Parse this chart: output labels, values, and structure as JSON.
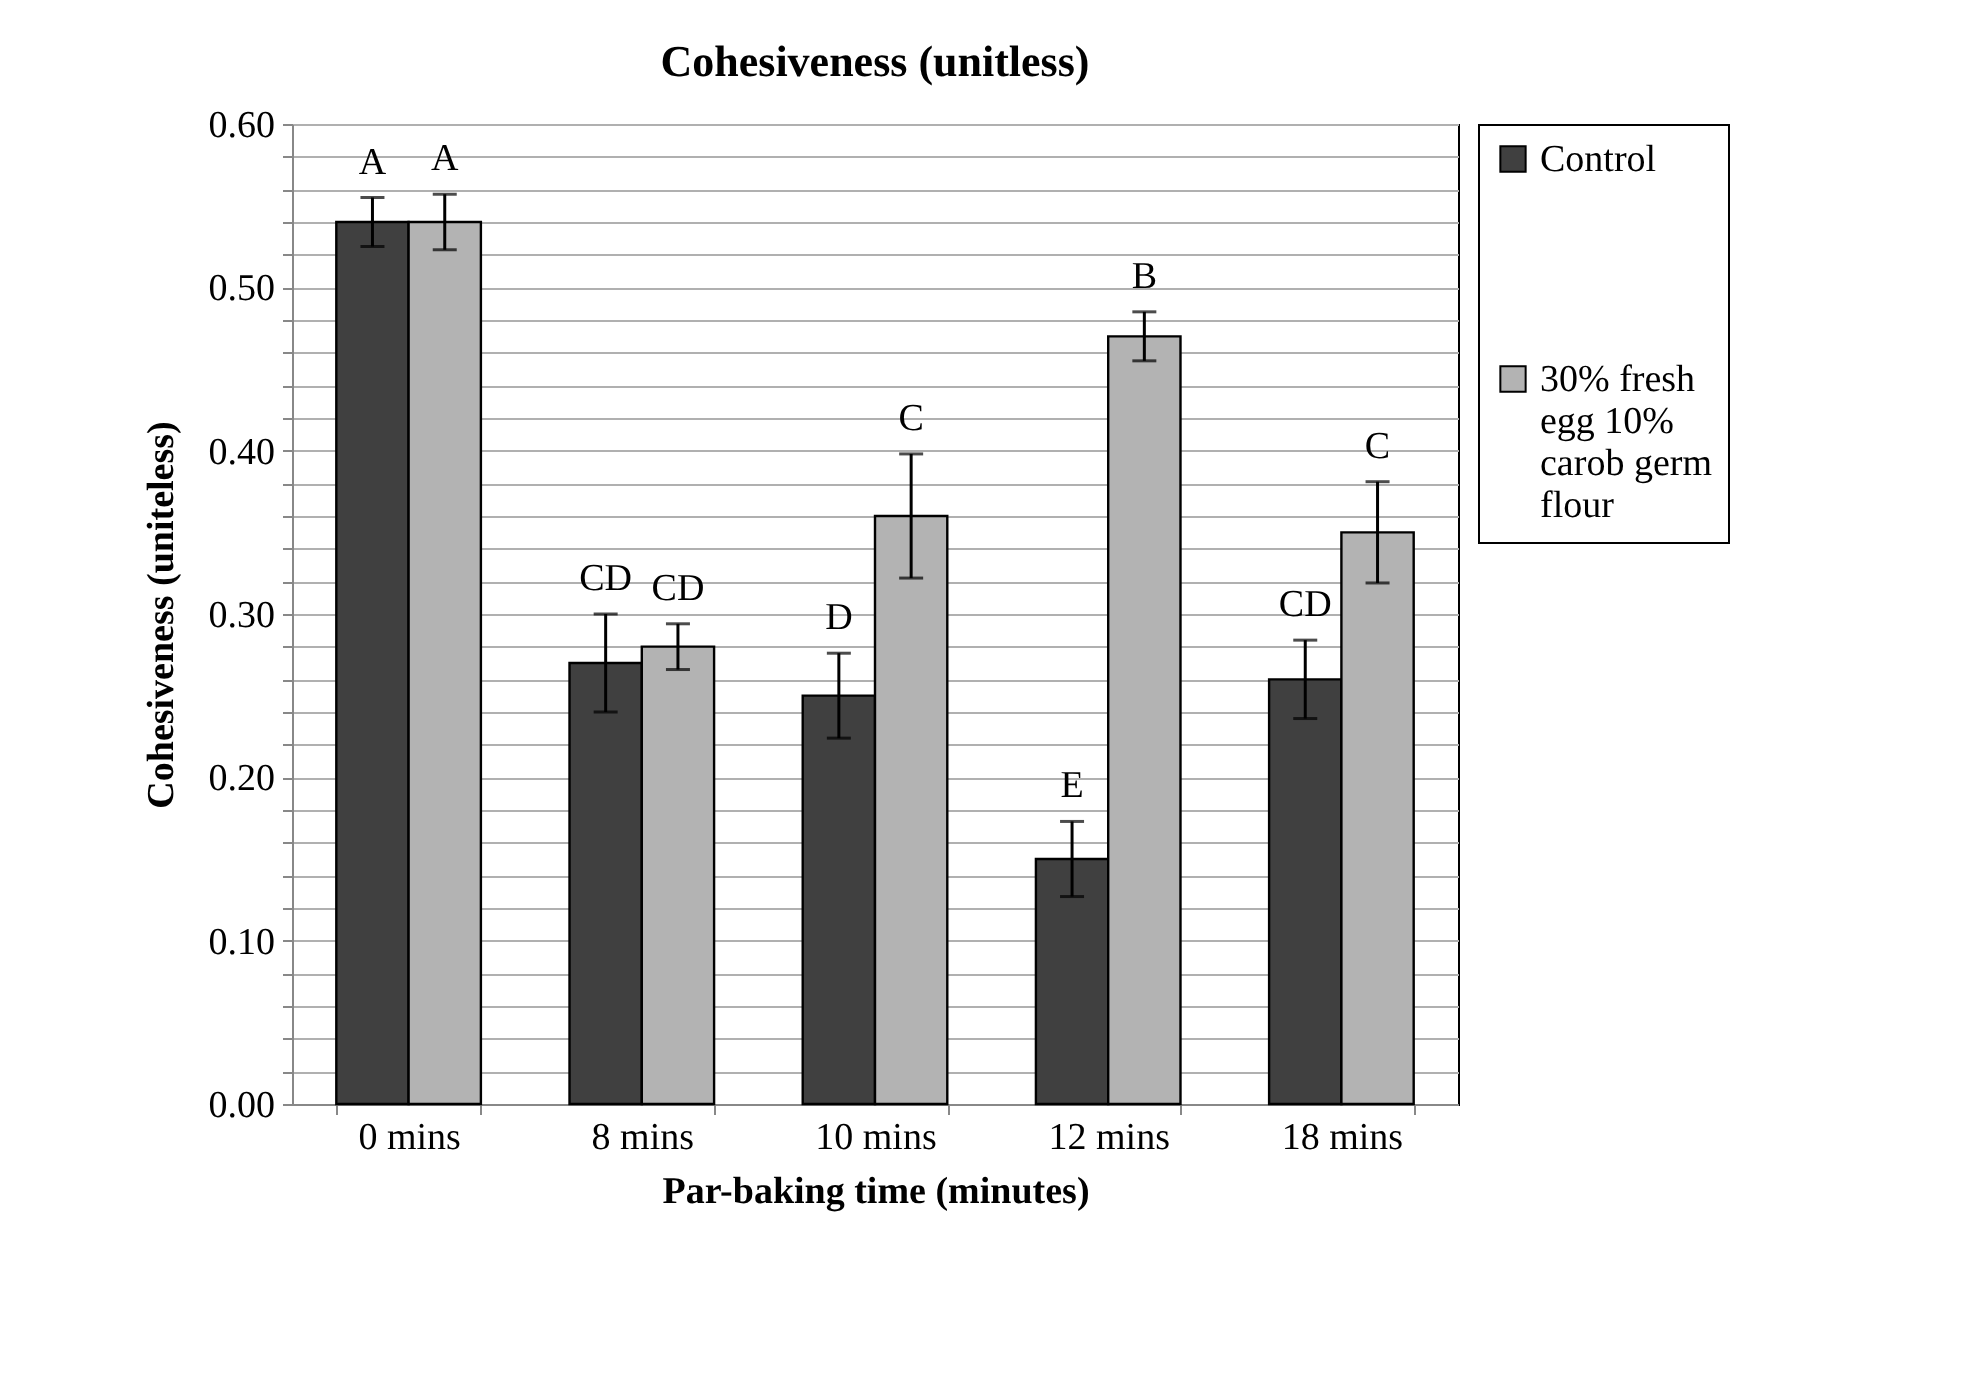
{
  "chart_data": {
    "type": "bar",
    "title": "Cohesiveness (unitless)",
    "xlabel": "Par-baking time (minutes)",
    "ylabel": "Cohesiveness (uniteless)",
    "categories": [
      "0 mins",
      "8 mins",
      "10 mins",
      "12 mins",
      "18 mins"
    ],
    "series": [
      {
        "name": "Control",
        "color": "#404040",
        "values": [
          0.54,
          0.27,
          0.25,
          0.15,
          0.26
        ],
        "errors": [
          0.015,
          0.03,
          0.026,
          0.023,
          0.024
        ],
        "value_labels": [
          "A",
          "CD",
          "D",
          "E",
          "CD"
        ]
      },
      {
        "name": "30% fresh egg 10% carob germ flour",
        "color": "#b3b3b3",
        "values": [
          0.54,
          0.28,
          0.36,
          0.47,
          0.35
        ],
        "errors": [
          0.017,
          0.014,
          0.038,
          0.015,
          0.031
        ],
        "value_labels": [
          "A",
          "CD",
          "C",
          "B",
          "C"
        ]
      }
    ],
    "ylim": [
      0,
      0.6
    ],
    "yticks": [
      {
        "value": 0,
        "label": "0.00"
      },
      {
        "value": 0.02,
        "label": null
      },
      {
        "value": 0.04,
        "label": null
      },
      {
        "value": 0.06,
        "label": null
      },
      {
        "value": 0.08,
        "label": null
      },
      {
        "value": 0.1,
        "label": "0.10"
      },
      {
        "value": 0.12,
        "label": null
      },
      {
        "value": 0.14,
        "label": null
      },
      {
        "value": 0.16,
        "label": null
      },
      {
        "value": 0.18,
        "label": null
      },
      {
        "value": 0.2,
        "label": "0.20"
      },
      {
        "value": 0.22,
        "label": null
      },
      {
        "value": 0.24,
        "label": null
      },
      {
        "value": 0.26,
        "label": null
      },
      {
        "value": 0.28,
        "label": null
      },
      {
        "value": 0.3,
        "label": "0.30"
      },
      {
        "value": 0.32,
        "label": null
      },
      {
        "value": 0.34,
        "label": null
      },
      {
        "value": 0.36,
        "label": null
      },
      {
        "value": 0.38,
        "label": null
      },
      {
        "value": 0.4,
        "label": "0.40"
      },
      {
        "value": 0.42,
        "label": null
      },
      {
        "value": 0.44,
        "label": null
      },
      {
        "value": 0.46,
        "label": null
      },
      {
        "value": 0.48,
        "label": null
      },
      {
        "value": 0.5,
        "label": "0.50"
      },
      {
        "value": 0.52,
        "label": null
      },
      {
        "value": 0.54,
        "label": null
      },
      {
        "value": 0.56,
        "label": null
      },
      {
        "value": 0.58,
        "label": null
      },
      {
        "value": 0.6,
        "label": "0.60"
      }
    ],
    "grid": "y",
    "legend": "right"
  }
}
